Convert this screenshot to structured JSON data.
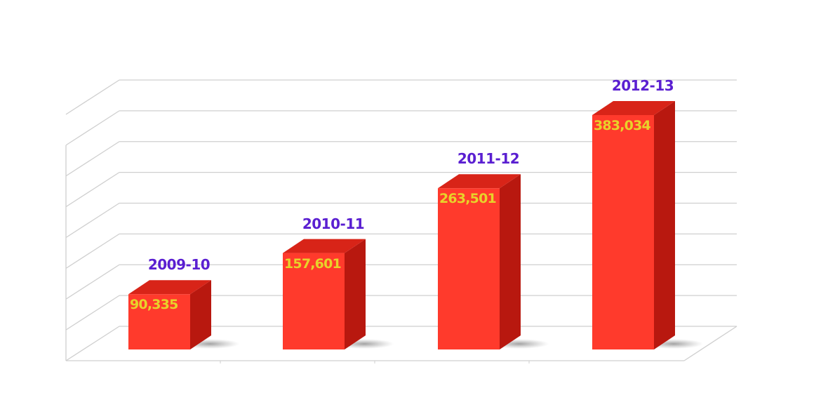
{
  "chart_data": {
    "type": "bar",
    "style": "3d-column",
    "title": "",
    "xlabel": "",
    "ylabel": "",
    "categories": [
      "2009-10",
      "2010-11",
      "2011-12",
      "2012-13"
    ],
    "values": [
      90335,
      157601,
      263501,
      383034
    ],
    "value_labels": [
      "90,335",
      "157,601",
      "263,501",
      "383,034"
    ],
    "ylim": [
      0,
      400000
    ],
    "grid": true,
    "gridline_count": 9,
    "legend": null,
    "colors": {
      "bar_front": "#ff3a2c",
      "bar_top": "#d82418",
      "bar_side": "#b8180f",
      "category_label": "#5a1fd1",
      "value_label": "#e8d22a",
      "grid": "#cfcfcf"
    }
  }
}
